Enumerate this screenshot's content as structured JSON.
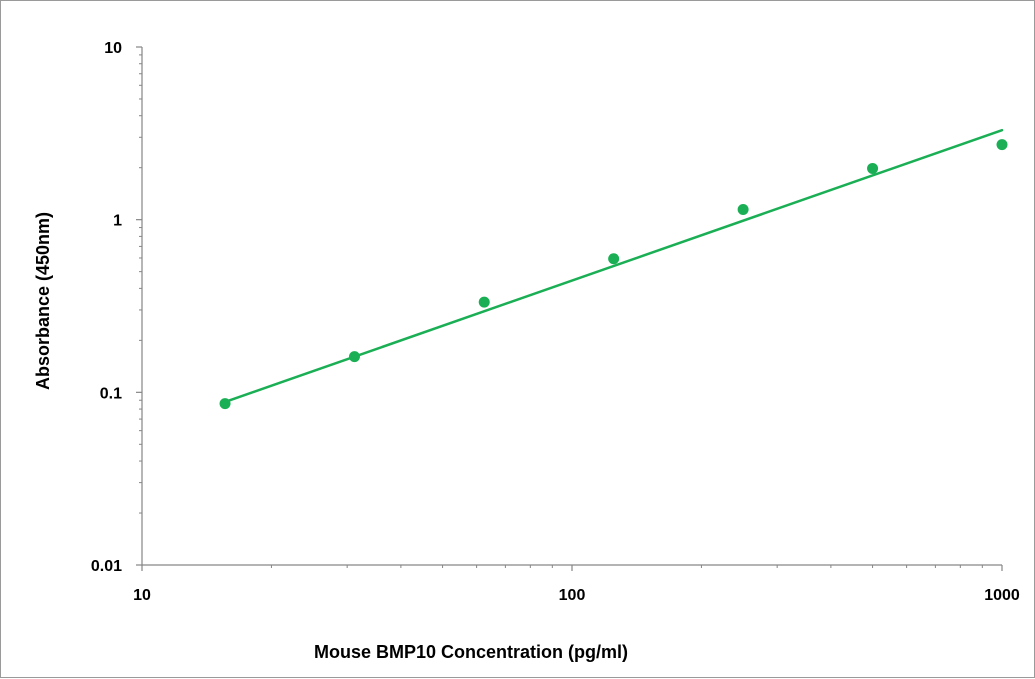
{
  "chart_data": {
    "type": "scatter",
    "title": "",
    "xlabel": "Mouse BMP10 Concentration (pg/ml)",
    "ylabel": "Absorbance (450nm)",
    "x_scale": "log",
    "y_scale": "log",
    "xlim": [
      10,
      1000
    ],
    "ylim": [
      0.01,
      10
    ],
    "x_ticks": [
      10,
      100,
      1000
    ],
    "x_tick_labels": [
      "10",
      "100",
      "1000"
    ],
    "y_ticks": [
      0.01,
      0.1,
      1,
      10
    ],
    "y_tick_labels": [
      "0.01",
      "0.1",
      "1",
      "10"
    ],
    "grid": false,
    "legend": "none",
    "color": "#1aaf54",
    "points": {
      "x": [
        15.6,
        31.2,
        62.5,
        125,
        250,
        500,
        1000
      ],
      "y": [
        0.086,
        0.161,
        0.333,
        0.594,
        1.145,
        1.98,
        2.72
      ]
    },
    "trendline": {
      "type": "power",
      "x": [
        15.6,
        1000
      ],
      "y": [
        0.088,
        3.3
      ]
    }
  }
}
